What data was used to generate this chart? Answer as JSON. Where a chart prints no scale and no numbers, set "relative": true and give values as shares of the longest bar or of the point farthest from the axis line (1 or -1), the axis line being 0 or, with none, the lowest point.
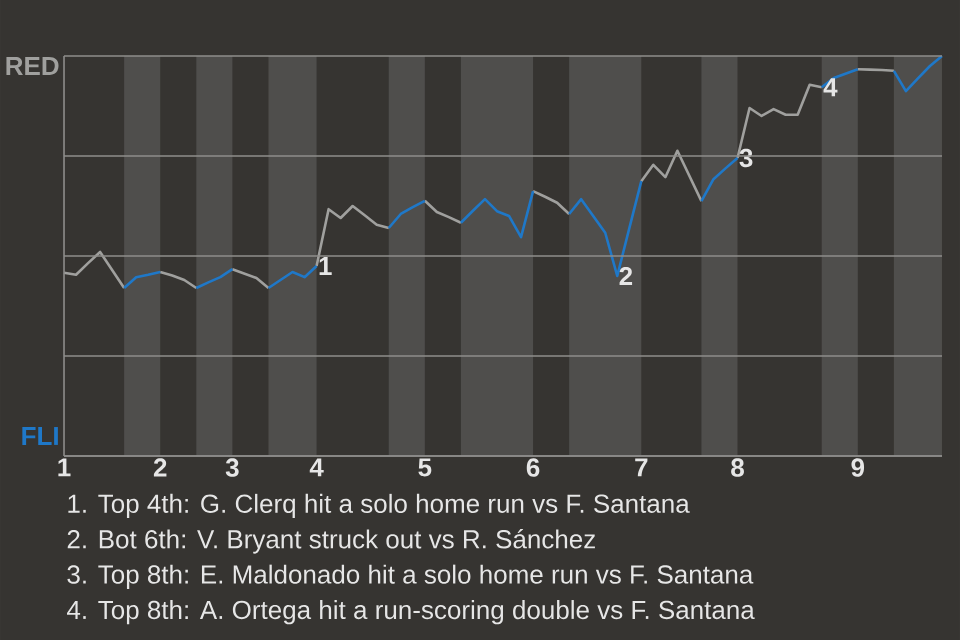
{
  "chart_data": {
    "type": "line",
    "relative": true,
    "categories": [
      "1",
      null,
      null,
      null,
      null,
      null,
      null,
      null,
      "2",
      null,
      null,
      null,
      null,
      null,
      "3",
      null,
      null,
      null,
      null,
      null,
      null,
      "4",
      null,
      null,
      null,
      null,
      null,
      null,
      null,
      null,
      "5",
      null,
      null,
      null,
      null,
      null,
      null,
      null,
      null,
      "6",
      null,
      null,
      null,
      null,
      null,
      null,
      null,
      null,
      "7",
      null,
      null,
      null,
      null,
      null,
      null,
      null,
      "8",
      null,
      null,
      null,
      null,
      null,
      null,
      null,
      null,
      null,
      "9",
      null,
      null,
      null,
      null,
      null,
      null,
      null
    ],
    "series": [
      {
        "name": "RED",
        "color": "#a0a09e",
        "values": [
          0.458,
          0.453,
          0.482,
          0.51,
          0.465,
          0.42,
          null,
          null,
          0.46,
          0.451,
          0.44,
          0.42,
          null,
          null,
          0.467,
          0.456,
          0.445,
          0.42,
          null,
          null,
          null,
          0.475,
          0.617,
          0.595,
          0.625,
          0.602,
          0.578,
          0.57,
          null,
          null,
          0.638,
          0.61,
          0.597,
          0.583,
          null,
          null,
          null,
          null,
          null,
          0.662,
          0.648,
          0.633,
          0.605,
          null,
          null,
          null,
          null,
          null,
          0.687,
          0.728,
          0.697,
          0.763,
          0.7,
          0.637,
          null,
          null,
          0.745,
          0.87,
          0.85,
          0.867,
          0.853,
          0.853,
          0.928,
          0.922,
          null,
          null,
          0.967,
          0.966,
          0.965,
          0.963,
          null,
          null,
          null,
          null
        ]
      },
      {
        "name": "FLI",
        "color": "#1f78c8",
        "values": [
          null,
          null,
          null,
          null,
          null,
          0.42,
          0.447,
          0.453,
          0.46,
          null,
          null,
          0.42,
          0.434,
          0.447,
          0.467,
          null,
          null,
          0.42,
          0.44,
          0.46,
          0.447,
          0.475,
          null,
          null,
          null,
          null,
          null,
          0.57,
          0.605,
          0.622,
          0.638,
          null,
          null,
          0.583,
          0.613,
          0.642,
          0.612,
          0.6,
          0.547,
          0.662,
          null,
          null,
          0.605,
          0.642,
          0.6,
          0.558,
          0.45,
          0.569,
          0.687,
          null,
          null,
          null,
          null,
          0.637,
          0.692,
          0.719,
          0.745,
          null,
          null,
          null,
          null,
          null,
          null,
          0.922,
          0.945,
          0.956,
          0.967,
          null,
          null,
          0.963,
          0.912,
          0.944,
          0.975,
          1
        ]
      }
    ],
    "grid": "y",
    "marker": "none",
    "line_style": "solid",
    "annotations": [
      {
        "text": "1",
        "y": 0.475
      },
      {
        "text": "2",
        "y": 0.45
      },
      {
        "text": "3",
        "y": 0.745
      },
      {
        "text": "4",
        "y": 0.922
      },
      "1. Top 4th: G. Clerq hit a solo home run vs F. Santana",
      "2. Bot 6th: V. Bryant struck out vs R. Sánchez",
      "3. Top 8th: E. Maldonado hit a solo home run vs F. Santana",
      "4. Top 8th: A. Ortega hit a run-scoring double vs F. Santana"
    ]
  }
}
